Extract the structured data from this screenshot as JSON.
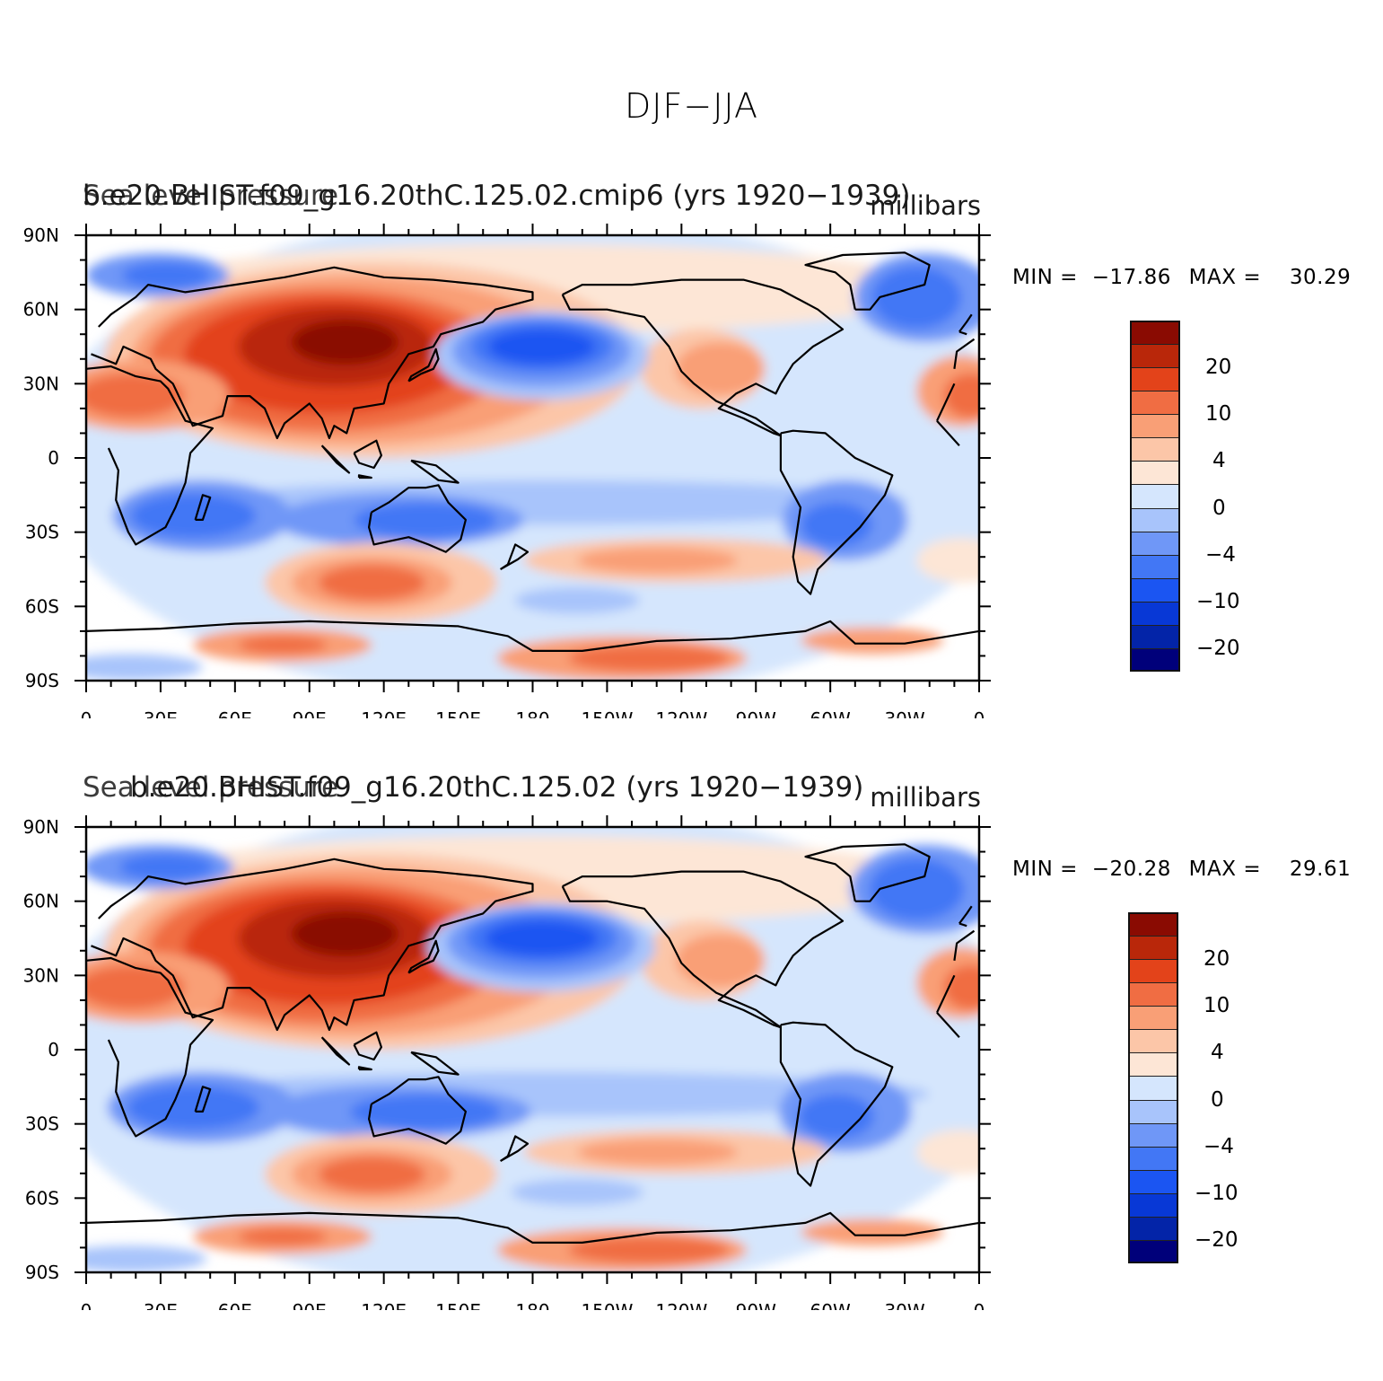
{
  "title": "DJF−JJA",
  "colors": [
    "#00007a",
    "#0324a8",
    "#0838d6",
    "#1b55f2",
    "#4277f5",
    "#6f97f7",
    "#a8c4fb",
    "#d5e6fd",
    "#fde6d6",
    "#fcc6a8",
    "#f99f76",
    "#f06d43",
    "#e3431a",
    "#b9270a",
    "#8a0b02"
  ],
  "colorbar_labels": [
    "20",
    "10",
    "4",
    "0",
    "−4",
    "−10",
    "−20"
  ],
  "lat_labels": [
    "90N",
    "60N",
    "30N",
    "0",
    "30S",
    "60S",
    "90S"
  ],
  "lon_labels": [
    "0",
    "30E",
    "60E",
    "90E",
    "120E",
    "150E",
    "180",
    "150W",
    "120W",
    "90W",
    "60W",
    "30W",
    "0"
  ],
  "panels": [
    {
      "case_title": "b.e20.BHIST.f09_g16.20thC.125.02.cmip6 (yrs 1920−1939)",
      "var_title": "Sea level pressure",
      "units": "millibars",
      "min_label": "MIN =",
      "min_value": "−17.86",
      "max_label": "MAX =",
      "max_value": "30.29"
    },
    {
      "case_title": "b.e20.BHIST.f09_g16.20thC.125.02 (yrs 1920−1939)",
      "var_title": "Sea level pressure",
      "units": "millibars",
      "min_label": "MIN =",
      "min_value": "−20.28",
      "max_label": "MAX =",
      "max_value": "29.61"
    }
  ]
}
